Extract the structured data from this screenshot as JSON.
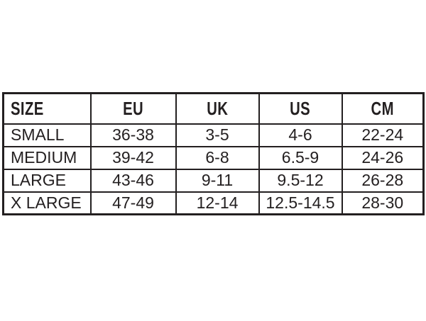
{
  "style": {
    "background": "#ffffff",
    "border_color": "#231f20",
    "text_color": "#231f20"
  },
  "chart_data": {
    "type": "table",
    "columns": [
      "SIZE",
      "EU",
      "UK",
      "US",
      "CM"
    ],
    "rows": [
      [
        "SMALL",
        "36-38",
        "3-5",
        "4-6",
        "22-24"
      ],
      [
        "MEDIUM",
        "39-42",
        "6-8",
        "6.5-9",
        "24-26"
      ],
      [
        "LARGE",
        "43-46",
        "9-11",
        "9.5-12",
        "26-28"
      ],
      [
        "X LARGE",
        "47-49",
        "12-14",
        "12.5-14.5",
        "28-30"
      ]
    ]
  }
}
